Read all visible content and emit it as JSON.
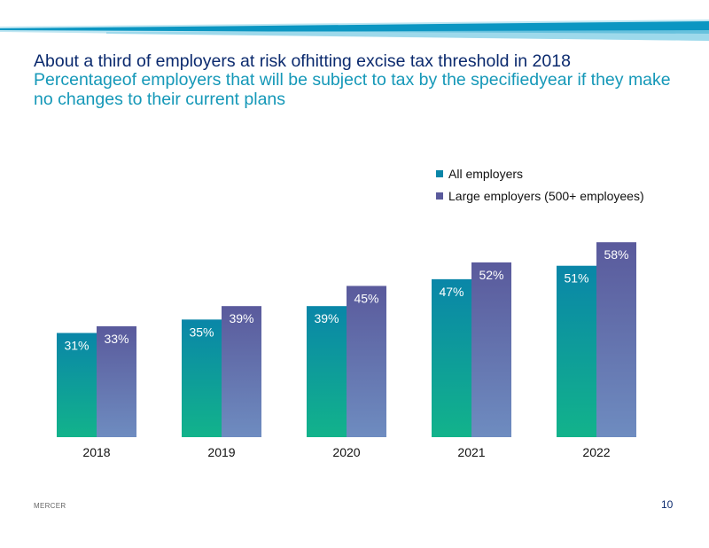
{
  "slide": {
    "title": "About a third of employers at risk ofhitting excise tax threshold in 2018",
    "subtitle": "Percentageof employers that will be subject to tax by the specifiedyear if they make no changes to their current plans",
    "footer_brand": "MERCER",
    "page_number": "10"
  },
  "colors": {
    "all_top": "#0a86a8",
    "all_bottom": "#12b38b",
    "large_top": "#5a5a9c",
    "large_bottom": "#6e8cc0",
    "banner_dark": "#0b96c2",
    "banner_light": "#bfe6f2"
  },
  "chart_data": {
    "type": "bar",
    "title": "",
    "xlabel": "",
    "ylabel": "",
    "categories": [
      "2018",
      "2019",
      "2020",
      "2021",
      "2022"
    ],
    "series": [
      {
        "name": "All employers",
        "values": [
          31,
          35,
          39,
          47,
          51
        ],
        "labels": [
          "31%",
          "35%",
          "39%",
          "47%",
          "51%"
        ]
      },
      {
        "name": "Large employers (500+ employees)",
        "values": [
          33,
          39,
          45,
          52,
          58
        ],
        "labels": [
          "33%",
          "39%",
          "45%",
          "52%",
          "58%"
        ]
      }
    ],
    "ylim": [
      0,
      100
    ],
    "grid": false,
    "legend_position": "top-right"
  }
}
